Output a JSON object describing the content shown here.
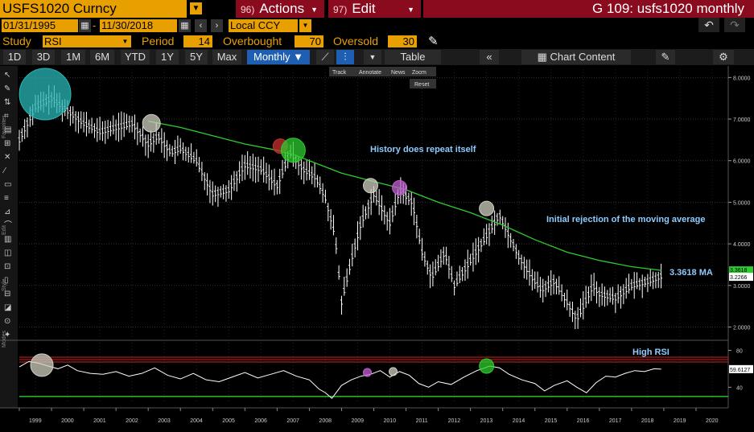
{
  "header": {
    "ticker": "USFS1020 Curncy",
    "actions": {
      "num": "96)",
      "label": "Actions"
    },
    "edit": {
      "num": "97)",
      "label": "Edit"
    },
    "title": "G 109: usfs1020 monthly"
  },
  "range": {
    "start": "01/31/1995",
    "end": "11/30/2018",
    "currency": "Local CCY"
  },
  "study": {
    "label": "Study",
    "value": "RSI",
    "period_label": "Period",
    "period": "14",
    "overbought_label": "Overbought",
    "overbought": "70",
    "oversold_label": "Oversold",
    "oversold": "30"
  },
  "toolbar": {
    "periods": [
      "1D",
      "3D",
      "1M",
      "6M",
      "YTD",
      "1Y",
      "5Y",
      "Max"
    ],
    "frequency": "Monthly",
    "table": "Table",
    "chart_content": "Chart Content",
    "mini": {
      "track": "Track",
      "annotate": "Annotate",
      "news": "News",
      "zoom": "Zoom",
      "reset": "Reset"
    }
  },
  "side_labels": [
    "Favorites",
    "Edit",
    "Style",
    "Modes"
  ],
  "colors": {
    "ma": "#2ecc2e",
    "price": "#ffffff",
    "annotation": "#8ecbff",
    "overbought": "#d32020",
    "oversold": "#2ecc2e",
    "panel_bg": "#000000"
  },
  "chart_data": [
    {
      "type": "line",
      "title": "",
      "x_ticks": [
        "1999",
        "2000",
        "2001",
        "2002",
        "2003",
        "2004",
        "2005",
        "2006",
        "2007",
        "2008",
        "2009",
        "2010",
        "2011",
        "2012",
        "2013",
        "2014",
        "2015",
        "2016",
        "2017",
        "2018",
        "2019",
        "2020"
      ],
      "y_ticks": [
        "8.0000",
        "7.0000",
        "6.0000",
        "5.0000",
        "4.0000",
        "3.0000",
        "2.0000"
      ],
      "ylim": [
        1.7,
        8.2
      ],
      "series": [
        {
          "role": "price",
          "x": [
            1999.0,
            1999.5,
            2000.0,
            2000.5,
            2001.0,
            2001.5,
            2002.0,
            2002.5,
            2003.0,
            2003.3,
            2003.7,
            2004.0,
            2004.5,
            2005.0,
            2005.5,
            2006.0,
            2006.5,
            2007.0,
            2007.4,
            2007.8,
            2008.2,
            2008.5,
            2008.8,
            2009.0,
            2009.3,
            2009.6,
            2010.0,
            2010.5,
            2010.8,
            2011.2,
            2011.5,
            2011.8,
            2012.2,
            2012.5,
            2013.0,
            2013.5,
            2013.9,
            2014.2,
            2014.5,
            2014.9,
            2015.2,
            2015.6,
            2016.0,
            2016.3,
            2016.5,
            2016.8,
            2017.0,
            2017.5,
            2018.0,
            2018.5,
            2018.92
          ],
          "y": [
            6.5,
            7.3,
            7.5,
            7.2,
            6.9,
            6.7,
            6.8,
            6.9,
            6.4,
            6.6,
            6.2,
            6.3,
            6.0,
            5.2,
            5.3,
            5.9,
            5.8,
            5.4,
            6.2,
            5.8,
            5.6,
            5.1,
            4.2,
            2.6,
            3.6,
            4.5,
            5.2,
            4.5,
            5.3,
            5.0,
            3.8,
            3.2,
            3.8,
            3.0,
            3.6,
            4.2,
            4.7,
            4.2,
            3.7,
            3.2,
            2.9,
            3.1,
            2.6,
            2.2,
            2.5,
            3.0,
            2.8,
            2.7,
            3.0,
            3.1,
            3.2266
          ]
        },
        {
          "role": "moving-average",
          "x": [
            2003.0,
            2004.0,
            2005.0,
            2006.0,
            2007.0,
            2007.5,
            2008.0,
            2008.5,
            2009.0,
            2010.0,
            2011.0,
            2012.0,
            2013.0,
            2014.0,
            2015.0,
            2016.0,
            2017.0,
            2018.0,
            2018.92
          ],
          "y": [
            6.95,
            6.8,
            6.6,
            6.4,
            6.25,
            6.15,
            6.0,
            5.85,
            5.7,
            5.5,
            5.3,
            5.0,
            4.75,
            4.45,
            4.1,
            3.8,
            3.6,
            3.45,
            3.3618
          ]
        }
      ],
      "last_value_label": "3.2266",
      "ma_end_label": "3.3618",
      "annotations": [
        {
          "text": "History does repeat itself"
        },
        {
          "text": "Initial rejection of the moving average"
        },
        {
          "text": "3.3618 MA"
        }
      ],
      "highlights": [
        {
          "x": 1999.8,
          "y": 7.6,
          "color": "#2ab7b7"
        },
        {
          "x": 2003.1,
          "y": 6.9,
          "color": "#cfcfc0"
        },
        {
          "x": 2007.1,
          "y": 6.35,
          "color": "#c83030"
        },
        {
          "x": 2007.5,
          "y": 6.25,
          "color": "#2ecc2e"
        },
        {
          "x": 2009.9,
          "y": 5.4,
          "color": "#cfcfc0"
        },
        {
          "x": 2010.8,
          "y": 5.35,
          "color": "#c060d0"
        },
        {
          "x": 2013.5,
          "y": 4.85,
          "color": "#cfcfc0"
        }
      ]
    },
    {
      "type": "line",
      "title": "",
      "y_ticks": [
        "80",
        "40"
      ],
      "ylim": [
        22,
        90
      ],
      "overbought": 70,
      "oversold": 30,
      "series": [
        {
          "role": "rsi",
          "x": [
            1999.0,
            1999.3,
            1999.6,
            1999.9,
            2000.2,
            2000.5,
            2000.8,
            2001.2,
            2001.6,
            2002.0,
            2002.4,
            2002.8,
            2003.2,
            2003.6,
            2004.0,
            2004.4,
            2004.8,
            2005.2,
            2005.6,
            2006.0,
            2006.4,
            2006.8,
            2007.2,
            2007.6,
            2008.0,
            2008.3,
            2008.5,
            2008.7,
            2009.0,
            2009.3,
            2009.6,
            2009.9,
            2010.2,
            2010.5,
            2010.8,
            2011.1,
            2011.4,
            2011.7,
            2012.0,
            2012.4,
            2012.8,
            2013.2,
            2013.6,
            2013.9,
            2014.2,
            2014.6,
            2015.0,
            2015.3,
            2015.6,
            2016.0,
            2016.3,
            2016.6,
            2016.9,
            2017.2,
            2017.5,
            2017.8,
            2018.1,
            2018.4,
            2018.7,
            2018.92
          ],
          "y": [
            62,
            68,
            66,
            63,
            60,
            64,
            58,
            55,
            54,
            57,
            52,
            55,
            61,
            53,
            49,
            55,
            48,
            46,
            51,
            56,
            50,
            54,
            58,
            52,
            48,
            38,
            34,
            28,
            42,
            48,
            52,
            54,
            58,
            51,
            57,
            53,
            44,
            40,
            46,
            43,
            51,
            58,
            63,
            61,
            54,
            48,
            44,
            36,
            42,
            47,
            40,
            34,
            45,
            52,
            51,
            55,
            58,
            57,
            60,
            59.6127
          ]
        }
      ],
      "last_value_label": "59.6127",
      "annotations": [
        {
          "text": "High RSI"
        }
      ],
      "highlights": [
        {
          "x": 1999.7,
          "y": 64,
          "color": "#cfcfc0"
        },
        {
          "x": 2009.8,
          "y": 56,
          "color": "#c060d0"
        },
        {
          "x": 2010.6,
          "y": 57,
          "color": "#cfcfc0"
        },
        {
          "x": 2013.5,
          "y": 63,
          "color": "#2ecc2e"
        }
      ]
    }
  ]
}
